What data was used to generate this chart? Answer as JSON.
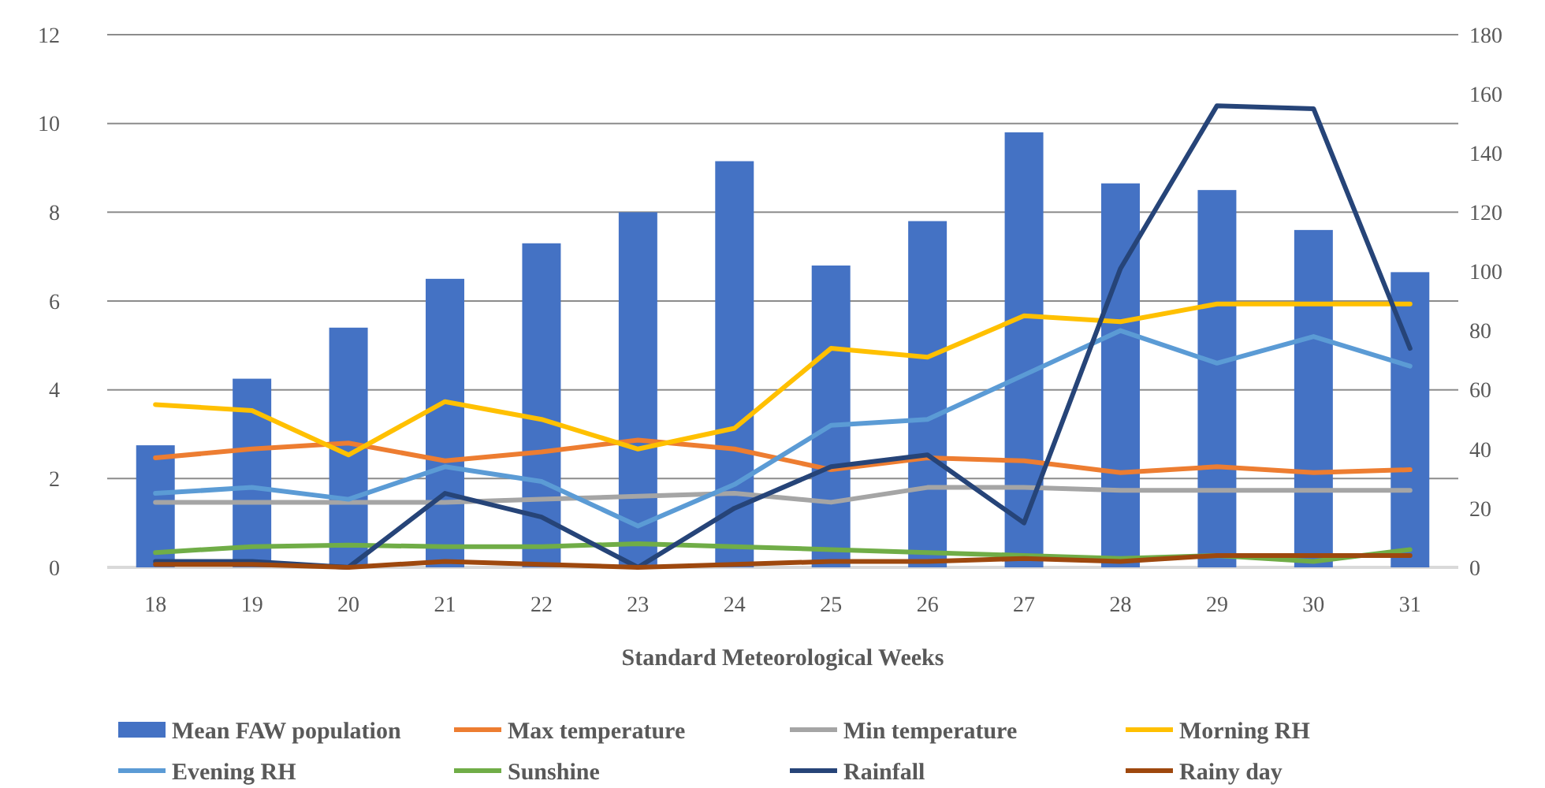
{
  "chart_data": {
    "type": "bar",
    "xlabel": "Standard Meteorological Weeks",
    "categories": [
      "18",
      "19",
      "20",
      "21",
      "22",
      "23",
      "24",
      "25",
      "26",
      "27",
      "28",
      "29",
      "30",
      "31"
    ],
    "series": [
      {
        "name": "Mean FAW population",
        "color": "#4472c4",
        "values": [
          2.75,
          4.25,
          5.4,
          6.5,
          7.3,
          8.0,
          9.15,
          6.8,
          7.8,
          9.8,
          8.65,
          8.5,
          7.6,
          6.65
        ]
      },
      {
        "name": "Max temperature",
        "type": "line",
        "axis": "y2",
        "color": "#ed7d31",
        "values": [
          37,
          40,
          42,
          36,
          39,
          43,
          40,
          33,
          37,
          36,
          32,
          34,
          32,
          33
        ]
      },
      {
        "name": "Min temperature",
        "type": "line",
        "axis": "y2",
        "color": "#a5a5a5",
        "values": [
          22,
          22,
          22,
          22,
          23,
          24,
          25,
          22,
          27,
          27,
          26,
          26,
          26,
          26
        ]
      },
      {
        "name": "Morning RH",
        "type": "line",
        "axis": "y2",
        "color": "#ffc000",
        "values": [
          55,
          53,
          38,
          56,
          50,
          40,
          47,
          74,
          71,
          85,
          83,
          89,
          89,
          89
        ]
      },
      {
        "name": "Evening RH",
        "type": "line",
        "axis": "y2",
        "color": "#5b9bd5",
        "values": [
          25,
          27,
          23,
          34,
          29,
          14,
          28,
          48,
          50,
          65,
          80,
          69,
          78,
          68
        ]
      },
      {
        "name": "Sunshine",
        "type": "line",
        "axis": "y2",
        "color": "#70ad47",
        "values": [
          5,
          7,
          7.5,
          7,
          7,
          8,
          7,
          6,
          5,
          4,
          3,
          4,
          2,
          6
        ]
      },
      {
        "name": "Rainfall",
        "type": "line",
        "axis": "y2",
        "color": "#264478",
        "values": [
          2,
          2,
          0,
          25,
          17,
          0,
          20,
          34,
          38,
          15,
          101,
          156,
          155,
          74
        ]
      },
      {
        "name": "Rainy day",
        "type": "line",
        "axis": "y2",
        "color": "#9e480e",
        "values": [
          1,
          1,
          0,
          2,
          1,
          0,
          1,
          2,
          2,
          3,
          2,
          4,
          4,
          4
        ]
      }
    ],
    "ylim": [
      0,
      12
    ],
    "yticks": [
      0,
      2,
      4,
      6,
      8,
      10,
      12
    ],
    "y2lim": [
      0,
      180
    ],
    "y2ticks": [
      0,
      20,
      40,
      60,
      80,
      100,
      120,
      140,
      160,
      180
    ],
    "grid": "y",
    "legend": "bottom"
  }
}
